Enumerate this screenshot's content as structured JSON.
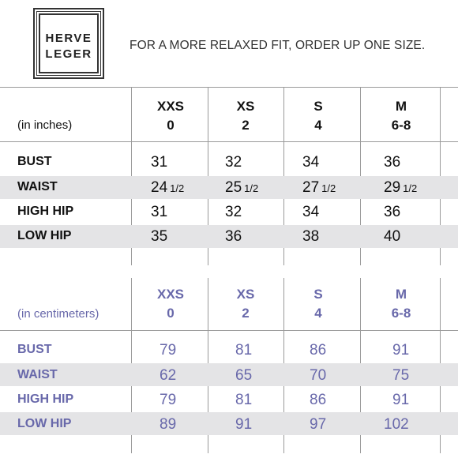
{
  "logo": {
    "line1": "HERVE",
    "line2": "LEGER"
  },
  "tagline": "FOR A MORE RELAXED FIT, ORDER UP ONE SIZE.",
  "inches_table": {
    "unit_label": "(in inches)",
    "columns": [
      {
        "size": "XXS",
        "number": "0"
      },
      {
        "size": "XS",
        "number": "2"
      },
      {
        "size": "S",
        "number": "4"
      },
      {
        "size": "M",
        "number": "6-8"
      }
    ],
    "rows": [
      {
        "label": "BUST",
        "values": [
          {
            "whole": "31",
            "frac": ""
          },
          {
            "whole": "32",
            "frac": ""
          },
          {
            "whole": "34",
            "frac": ""
          },
          {
            "whole": "36",
            "frac": ""
          }
        ]
      },
      {
        "label": "WAIST",
        "values": [
          {
            "whole": "24",
            "frac": "1/2"
          },
          {
            "whole": "25",
            "frac": "1/2"
          },
          {
            "whole": "27",
            "frac": "1/2"
          },
          {
            "whole": "29",
            "frac": "1/2"
          }
        ]
      },
      {
        "label": "HIGH HIP",
        "values": [
          {
            "whole": "31",
            "frac": ""
          },
          {
            "whole": "32",
            "frac": ""
          },
          {
            "whole": "34",
            "frac": ""
          },
          {
            "whole": "36",
            "frac": ""
          }
        ]
      },
      {
        "label": "LOW HIP",
        "values": [
          {
            "whole": "35",
            "frac": ""
          },
          {
            "whole": "36",
            "frac": ""
          },
          {
            "whole": "38",
            "frac": ""
          },
          {
            "whole": "40",
            "frac": ""
          }
        ]
      }
    ]
  },
  "cm_table": {
    "unit_label": "(in centimeters)",
    "columns": [
      {
        "size": "XXS",
        "number": "0"
      },
      {
        "size": "XS",
        "number": "2"
      },
      {
        "size": "S",
        "number": "4"
      },
      {
        "size": "M",
        "number": "6-8"
      }
    ],
    "rows": [
      {
        "label": "BUST",
        "values": [
          "79",
          "81",
          "86",
          "91"
        ]
      },
      {
        "label": "WAIST",
        "values": [
          "62",
          "65",
          "70",
          "75"
        ]
      },
      {
        "label": "HIGH HIP",
        "values": [
          "79",
          "81",
          "86",
          "91"
        ]
      },
      {
        "label": "LOW HIP",
        "values": [
          "89",
          "91",
          "97",
          "102"
        ]
      }
    ]
  },
  "colors": {
    "cm_text": "#6868aa",
    "band": "#e4e4e6",
    "rule": "#9a9a9a"
  }
}
